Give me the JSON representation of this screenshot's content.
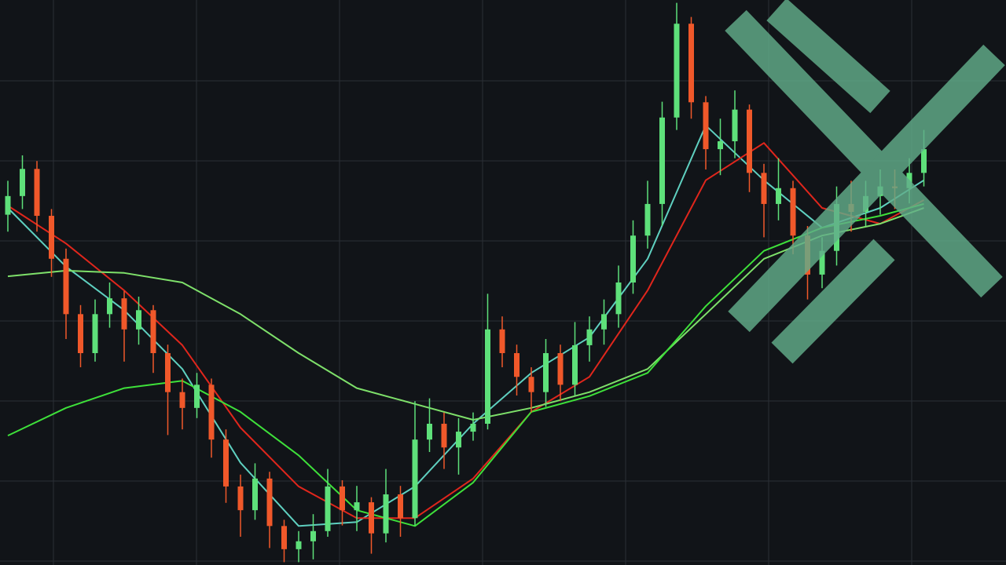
{
  "chart_data": {
    "type": "candlestick",
    "ylim": [
      0,
      100
    ],
    "grid": true,
    "up_color": "#5ee07a",
    "down_color": "#f0582a",
    "open": [
      62,
      65.3,
      70.1,
      61.8,
      54.2,
      44.4,
      37.5,
      44.4,
      47.2,
      41.7,
      45.1,
      37.5,
      30.6,
      27.8,
      31.9,
      22.2,
      13.9,
      9.7,
      15.3,
      6.9,
      2.8,
      4.2,
      6,
      13.9,
      9.7,
      11.1,
      5.6,
      12.5,
      8.3,
      22.2,
      25,
      20.8,
      23.6,
      25,
      41.7,
      37.5,
      33.3,
      30.6,
      37.5,
      31.9,
      38.9,
      41.7,
      44.4,
      50,
      58.3,
      63.9,
      79.2,
      95.8,
      81.9,
      73.6,
      75,
      80.6,
      69.4,
      63.9,
      66.7,
      58.3,
      51.4,
      55.6,
      63.9,
      62.5,
      65.3,
      67,
      66.7,
      69.4
    ],
    "high": [
      68,
      72.5,
      71.5,
      63,
      56,
      46,
      47,
      50,
      48.5,
      47.5,
      46,
      39,
      33,
      34,
      33,
      24,
      16,
      18,
      16.5,
      8,
      6,
      9,
      17,
      15,
      14,
      12,
      17,
      14,
      29,
      29.5,
      27,
      26,
      27,
      48,
      44,
      39,
      35,
      40,
      39,
      43,
      44,
      47,
      53,
      61,
      68,
      82,
      99.5,
      97,
      83,
      79,
      84,
      81.5,
      71,
      72,
      68,
      60,
      58,
      67,
      68,
      68,
      70,
      70,
      72,
      77
    ],
    "low": [
      59,
      63,
      59,
      51,
      40,
      35,
      36,
      42,
      36,
      39,
      34,
      23,
      24,
      26,
      19,
      11,
      5,
      8,
      3,
      0.5,
      0.5,
      1,
      5,
      7,
      6,
      2,
      4,
      5,
      7,
      20,
      17,
      16,
      22,
      24,
      35,
      30,
      27,
      28,
      29,
      30,
      36,
      39,
      42,
      48,
      56,
      60,
      77,
      79,
      70,
      69,
      72,
      66,
      58,
      61,
      55,
      47,
      49,
      53,
      59,
      60,
      62,
      63,
      64,
      67
    ],
    "close": [
      65.3,
      70.1,
      61.8,
      54.2,
      44.4,
      37.5,
      44.4,
      47.2,
      41.7,
      45.1,
      37.5,
      30.6,
      27.8,
      31.9,
      22.2,
      13.9,
      9.7,
      15.3,
      6.9,
      2.8,
      4.2,
      6,
      13.9,
      9.7,
      11.1,
      5.6,
      12.5,
      8.3,
      22.2,
      25,
      20.8,
      23.6,
      25,
      41.7,
      37.5,
      33.3,
      30.6,
      37.5,
      31.9,
      38.9,
      41.7,
      44.4,
      50,
      58.3,
      63.9,
      79.2,
      95.8,
      81.9,
      73.6,
      75,
      80.6,
      69.4,
      63.9,
      66.7,
      58.3,
      51.4,
      55.6,
      63.9,
      62.5,
      65.3,
      67,
      66.7,
      69.4,
      73.6
    ],
    "lines": [
      {
        "color": "#5fd0c0",
        "x": [
          0,
          4,
          8,
          12,
          16,
          20,
          24,
          28,
          32,
          36,
          40,
          44,
          48,
          52,
          56,
          60,
          63
        ],
        "values": [
          63.2,
          52.8,
          45.1,
          34.7,
          18.1,
          6.9,
          7.6,
          13.9,
          25,
          34,
          40.3,
          54.2,
          77.8,
          68.1,
          59.7,
          63.2,
          68.1
        ]
      },
      {
        "color": "#e0261c",
        "x": [
          0,
          4,
          8,
          12,
          16,
          20,
          24,
          28,
          32,
          36,
          40,
          44,
          48,
          52,
          56,
          60,
          63
        ],
        "values": [
          63.6,
          56.9,
          48.6,
          38.9,
          24.3,
          13.9,
          8.3,
          8.3,
          15.3,
          27.1,
          33.3,
          48.6,
          68.1,
          74.7,
          63.2,
          60.4,
          64.6
        ]
      },
      {
        "color": "#7ee06a",
        "x": [
          0,
          4,
          8,
          12,
          16,
          20,
          24,
          28,
          32,
          36,
          40,
          44,
          48,
          52,
          56,
          60,
          63
        ],
        "values": [
          51.1,
          52.1,
          51.7,
          50,
          44.4,
          37.5,
          31.3,
          28.5,
          25.7,
          27.8,
          30.6,
          34.7,
          44.4,
          54.2,
          58.3,
          60.4,
          63.2
        ]
      },
      {
        "color": "#3ee03a",
        "x": [
          0,
          4,
          8,
          12,
          16,
          20,
          24,
          28,
          32,
          36,
          40,
          44,
          48,
          52,
          56,
          60,
          63
        ],
        "values": [
          22.9,
          27.8,
          31.3,
          32.6,
          27.1,
          19.4,
          9.7,
          6.9,
          14.6,
          27.1,
          29.9,
          34,
          45.8,
          55.6,
          59.7,
          61.8,
          63.9
        ]
      }
    ]
  }
}
